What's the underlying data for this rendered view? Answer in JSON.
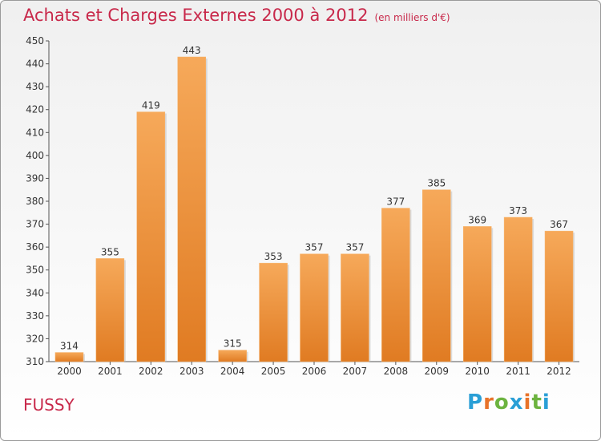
{
  "title": "Achats et Charges Externes 2000 à 2012",
  "subtitle": "(en milliers d'€)",
  "commune": "FUSSY",
  "logo": {
    "letters": [
      "P",
      "r",
      "o",
      "x",
      "i",
      "t",
      "i"
    ],
    "colors": [
      "#2a9fd6",
      "#e8732a",
      "#6cb33f",
      "#2a9fd6",
      "#e8732a",
      "#6cb33f",
      "#2a9fd6"
    ]
  },
  "colors": {
    "title": "#c8284a",
    "bar_light": "#f6a95a",
    "bar_dark": "#e07b22",
    "axis": "#555555"
  },
  "chart_data": {
    "type": "bar",
    "categories": [
      "2000",
      "2001",
      "2002",
      "2003",
      "2004",
      "2005",
      "2006",
      "2007",
      "2008",
      "2009",
      "2010",
      "2011",
      "2012"
    ],
    "values": [
      314,
      355,
      419,
      443,
      315,
      353,
      357,
      357,
      377,
      385,
      369,
      373,
      367
    ],
    "ylim": [
      310,
      450
    ],
    "yticks": [
      310,
      320,
      330,
      340,
      350,
      360,
      370,
      380,
      390,
      400,
      410,
      420,
      430,
      440,
      450
    ],
    "grid": false
  }
}
